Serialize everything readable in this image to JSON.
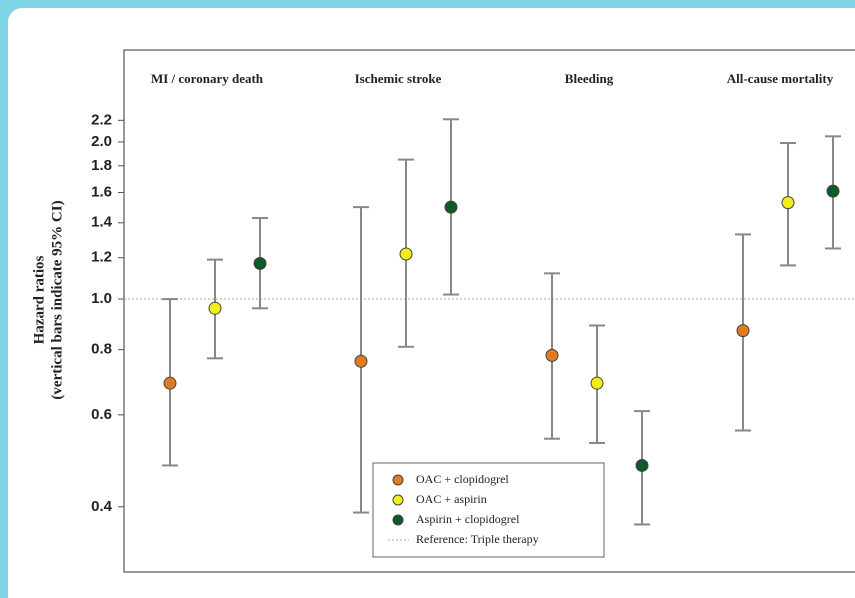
{
  "chart_data": {
    "type": "errorbar",
    "categories": [
      "MI / coronary death",
      "Ischemic stroke",
      "Bleeding",
      "All-cause mortality"
    ],
    "ylabel": [
      "Hazard ratios",
      "(vertical bars indicate 95% CI)"
    ],
    "log_scale": true,
    "ylim": [
      0.3,
      3.0
    ],
    "yticks": [
      0.4,
      0.6,
      0.8,
      {
        "value": 1,
        "label": "1.0"
      },
      1.2,
      1.4,
      1.6,
      1.8,
      {
        "value": 2,
        "label": "2.0"
      },
      2.2
    ],
    "series": [
      {
        "name": "OAC + clopidogrel",
        "color": "#e07b20",
        "values": [
          0.69,
          0.76,
          0.78,
          0.87
        ],
        "lower": [
          0.48,
          0.39,
          0.54,
          0.56
        ],
        "upper": [
          1.0,
          1.5,
          1.12,
          1.33
        ]
      },
      {
        "name": "OAC + aspirin",
        "color": "#f2ee1a",
        "values": [
          0.96,
          1.22,
          0.69,
          1.53
        ],
        "lower": [
          0.77,
          0.81,
          0.53,
          1.16
        ],
        "upper": [
          1.19,
          1.85,
          0.89,
          1.99
        ]
      },
      {
        "name": "Aspirin + clopidogrel",
        "color": "#0b5a2a",
        "values": [
          1.17,
          1.5,
          0.48,
          1.61
        ],
        "lower": [
          0.96,
          1.02,
          0.37,
          1.25
        ],
        "upper": [
          1.43,
          2.21,
          0.61,
          2.05
        ]
      }
    ],
    "reference": {
      "value": 1,
      "label": "Reference: Triple therapy"
    },
    "legend_position": "bottom-center"
  }
}
